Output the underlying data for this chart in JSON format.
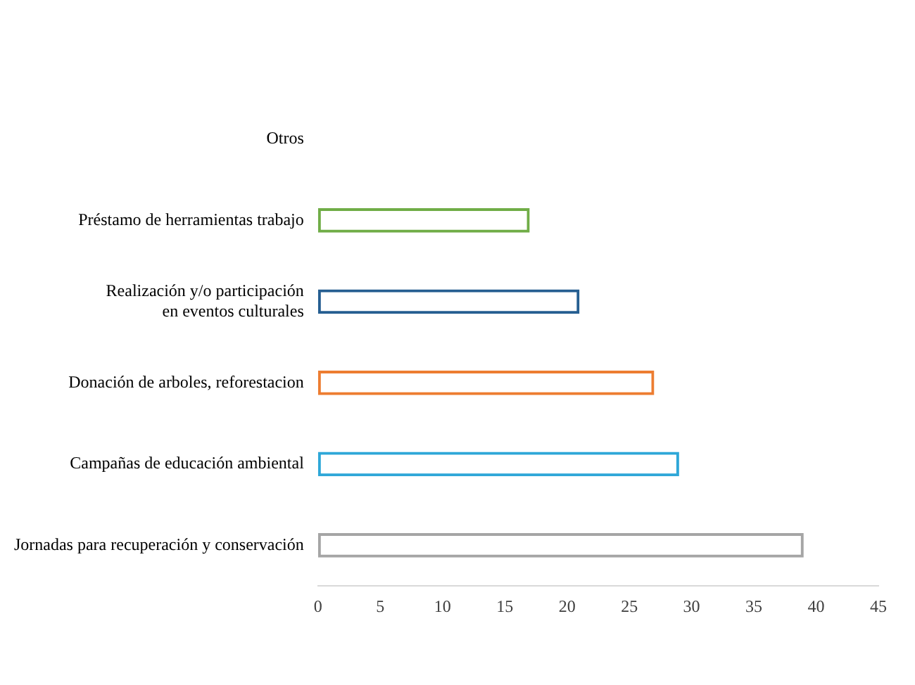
{
  "chart_data": {
    "type": "bar",
    "orientation": "horizontal",
    "categories": [
      "Otros",
      "Préstamo de herramientas trabajo",
      "Realización y/o participación\nen eventos culturales",
      "Donación de arboles, reforestacion",
      "Campañas de educación ambiental",
      "Jornadas para recuperación y conservación"
    ],
    "values": [
      0,
      17,
      21,
      27,
      29,
      39
    ],
    "colors": [
      "#5b9bd5",
      "#70ad47",
      "#255e91",
      "#ed7d31",
      "#2ea7d8",
      "#a5a5a5"
    ],
    "xlim": [
      0,
      45
    ],
    "xticks": [
      0,
      5,
      10,
      15,
      20,
      25,
      30,
      35,
      40,
      45
    ],
    "grid": false,
    "legend": false
  }
}
